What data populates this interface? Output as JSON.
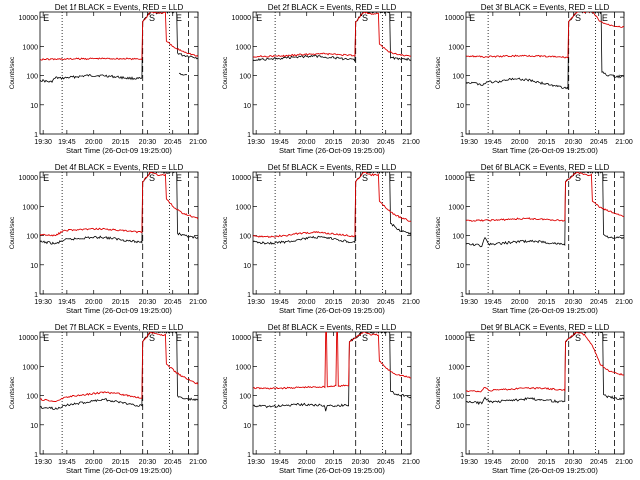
{
  "chart_data": [
    {
      "type": "line",
      "title": "Det 1f BLACK = Events, RED = LLD",
      "xlabel": "Start Time (26-Oct-09 19:25:00)",
      "ylabel": "Counts/sec",
      "panel_letters": [
        "E",
        "S",
        "E"
      ],
      "black": [
        [
          0,
          70
        ],
        [
          0.05,
          62
        ],
        [
          0.07,
          60
        ],
        [
          0.1,
          85
        ],
        [
          0.13,
          80
        ],
        [
          0.2,
          88
        ],
        [
          0.3,
          100
        ],
        [
          0.4,
          100
        ],
        [
          0.5,
          88
        ],
        [
          0.55,
          82
        ],
        [
          0.64,
          78
        ],
        [
          0.65,
          7000
        ],
        [
          0.7,
          15000
        ],
        [
          0.75,
          14000
        ],
        [
          0.82,
          15000
        ],
        [
          0.86,
          15000
        ],
        [
          0.87,
          600
        ],
        [
          0.9,
          500
        ],
        [
          0.96,
          450
        ],
        [
          1,
          400
        ]
      ],
      "black_tail": [
        [
          0.88,
          120
        ],
        [
          0.9,
          110
        ],
        [
          0.93,
          100
        ]
      ],
      "red": [
        [
          0,
          360
        ],
        [
          0.1,
          365
        ],
        [
          0.2,
          370
        ],
        [
          0.3,
          380
        ],
        [
          0.4,
          385
        ],
        [
          0.5,
          380
        ],
        [
          0.6,
          370
        ],
        [
          0.64,
          370
        ],
        [
          0.65,
          7000
        ],
        [
          0.7,
          15000
        ],
        [
          0.75,
          14000
        ],
        [
          0.8,
          1500
        ],
        [
          0.85,
          900
        ],
        [
          0.9,
          700
        ],
        [
          1,
          450
        ]
      ]
    },
    {
      "type": "line",
      "title": "Det 2f BLACK = Events, RED = LLD",
      "xlabel": "Start Time (26-Oct-09 19:25:00)",
      "ylabel": "Counts/sec",
      "panel_letters": [
        "E",
        "S",
        "E"
      ],
      "black": [
        [
          0,
          350
        ],
        [
          0.1,
          370
        ],
        [
          0.2,
          400
        ],
        [
          0.3,
          450
        ],
        [
          0.4,
          460
        ],
        [
          0.5,
          420
        ],
        [
          0.55,
          380
        ],
        [
          0.6,
          350
        ],
        [
          0.64,
          340
        ],
        [
          0.65,
          7000
        ],
        [
          0.7,
          15000
        ],
        [
          0.8,
          15000
        ],
        [
          0.86,
          15000
        ],
        [
          0.87,
          400
        ],
        [
          0.95,
          380
        ],
        [
          1,
          350
        ]
      ],
      "black_tail": [],
      "red": [
        [
          0,
          450
        ],
        [
          0.1,
          460
        ],
        [
          0.2,
          470
        ],
        [
          0.3,
          520
        ],
        [
          0.4,
          560
        ],
        [
          0.5,
          540
        ],
        [
          0.6,
          500
        ],
        [
          0.64,
          480
        ],
        [
          0.65,
          7000
        ],
        [
          0.7,
          15000
        ],
        [
          0.75,
          13000
        ],
        [
          0.8,
          1200
        ],
        [
          0.85,
          700
        ],
        [
          0.9,
          550
        ],
        [
          1,
          450
        ]
      ]
    },
    {
      "type": "line",
      "title": "Det 3f BLACK = Events, RED = LLD",
      "xlabel": "Start Time (26-Oct-09 19:25:00)",
      "ylabel": "Counts/sec",
      "panel_letters": [
        "E",
        "S",
        "E"
      ],
      "black": [
        [
          0,
          60
        ],
        [
          0.05,
          55
        ],
        [
          0.1,
          50
        ],
        [
          0.15,
          60
        ],
        [
          0.2,
          60
        ],
        [
          0.3,
          80
        ],
        [
          0.4,
          70
        ],
        [
          0.5,
          52
        ],
        [
          0.6,
          40
        ],
        [
          0.64,
          38
        ],
        [
          0.65,
          7000
        ],
        [
          0.7,
          15000
        ],
        [
          0.8,
          15000
        ],
        [
          0.85,
          15000
        ],
        [
          0.86,
          130
        ],
        [
          0.9,
          100
        ],
        [
          1,
          90
        ]
      ],
      "black_tail": [],
      "red": [
        [
          0,
          480
        ],
        [
          0.1,
          440
        ],
        [
          0.2,
          450
        ],
        [
          0.3,
          470
        ],
        [
          0.4,
          480
        ],
        [
          0.5,
          450
        ],
        [
          0.6,
          430
        ],
        [
          0.64,
          420
        ],
        [
          0.65,
          7000
        ],
        [
          0.7,
          15000
        ],
        [
          0.8,
          15000
        ],
        [
          0.85,
          7000
        ],
        [
          0.9,
          5500
        ],
        [
          1,
          4500
        ]
      ]
    },
    {
      "type": "line",
      "title": "Det 4f BLACK = Events, RED = LLD",
      "xlabel": "Start Time (26-Oct-09 19:25:00)",
      "ylabel": "Counts/sec",
      "panel_letters": [
        "E",
        "S",
        "E"
      ],
      "black": [
        [
          0,
          60
        ],
        [
          0.05,
          58
        ],
        [
          0.1,
          52
        ],
        [
          0.15,
          70
        ],
        [
          0.2,
          75
        ],
        [
          0.3,
          85
        ],
        [
          0.4,
          88
        ],
        [
          0.5,
          75
        ],
        [
          0.6,
          62
        ],
        [
          0.64,
          60
        ],
        [
          0.65,
          7000
        ],
        [
          0.7,
          15000
        ],
        [
          0.8,
          15000
        ],
        [
          0.86,
          15000
        ],
        [
          0.87,
          120
        ],
        [
          0.9,
          100
        ],
        [
          1,
          80
        ]
      ],
      "black_tail": [],
      "red": [
        [
          0,
          110
        ],
        [
          0.05,
          105
        ],
        [
          0.1,
          100
        ],
        [
          0.15,
          150
        ],
        [
          0.2,
          155
        ],
        [
          0.3,
          165
        ],
        [
          0.4,
          170
        ],
        [
          0.5,
          150
        ],
        [
          0.6,
          135
        ],
        [
          0.64,
          130
        ],
        [
          0.65,
          7000
        ],
        [
          0.7,
          15000
        ],
        [
          0.75,
          12000
        ],
        [
          0.8,
          1800
        ],
        [
          0.85,
          900
        ],
        [
          0.9,
          600
        ],
        [
          1,
          380
        ]
      ]
    },
    {
      "type": "line",
      "title": "Det 5f BLACK = Events, RED = LLD",
      "xlabel": "Start Time (26-Oct-09 19:25:00)",
      "ylabel": "Counts/sec",
      "panel_letters": [
        "E",
        "S",
        "E"
      ],
      "black": [
        [
          0,
          60
        ],
        [
          0.1,
          55
        ],
        [
          0.2,
          60
        ],
        [
          0.3,
          75
        ],
        [
          0.4,
          88
        ],
        [
          0.5,
          78
        ],
        [
          0.6,
          62
        ],
        [
          0.64,
          60
        ],
        [
          0.65,
          7000
        ],
        [
          0.7,
          15000
        ],
        [
          0.8,
          15000
        ],
        [
          0.86,
          15000
        ],
        [
          0.87,
          260
        ],
        [
          0.93,
          150
        ],
        [
          1,
          110
        ]
      ],
      "black_tail": [],
      "red": [
        [
          0,
          95
        ],
        [
          0.1,
          90
        ],
        [
          0.2,
          100
        ],
        [
          0.3,
          120
        ],
        [
          0.4,
          130
        ],
        [
          0.5,
          115
        ],
        [
          0.6,
          100
        ],
        [
          0.64,
          95
        ],
        [
          0.65,
          7000
        ],
        [
          0.7,
          15000
        ],
        [
          0.75,
          12000
        ],
        [
          0.8,
          1500
        ],
        [
          0.85,
          800
        ],
        [
          0.9,
          500
        ],
        [
          1,
          300
        ]
      ]
    },
    {
      "type": "line",
      "title": "Det 6f BLACK = Events, RED = LLD",
      "xlabel": "Start Time (26-Oct-09 19:25:00)",
      "ylabel": "Counts/sec",
      "panel_letters": [
        "E",
        "S",
        "E"
      ],
      "black": [
        [
          0,
          50
        ],
        [
          0.05,
          48
        ],
        [
          0.1,
          45
        ],
        [
          0.12,
          80
        ],
        [
          0.15,
          50
        ],
        [
          0.2,
          52
        ],
        [
          0.3,
          60
        ],
        [
          0.4,
          65
        ],
        [
          0.5,
          60
        ],
        [
          0.55,
          55
        ],
        [
          0.62,
          50
        ],
        [
          0.63,
          7000
        ],
        [
          0.7,
          15000
        ],
        [
          0.8,
          15000
        ],
        [
          0.86,
          15000
        ],
        [
          0.87,
          110
        ],
        [
          0.9,
          90
        ],
        [
          1,
          80
        ]
      ],
      "black_tail": [],
      "red": [
        [
          0,
          320
        ],
        [
          0.1,
          330
        ],
        [
          0.2,
          340
        ],
        [
          0.3,
          370
        ],
        [
          0.4,
          380
        ],
        [
          0.5,
          360
        ],
        [
          0.6,
          330
        ],
        [
          0.62,
          320
        ],
        [
          0.63,
          7000
        ],
        [
          0.7,
          15000
        ],
        [
          0.75,
          12000
        ],
        [
          0.8,
          1500
        ],
        [
          0.85,
          900
        ],
        [
          0.9,
          700
        ],
        [
          1,
          450
        ]
      ]
    },
    {
      "type": "line",
      "title": "Det 7f BLACK = Events, RED = LLD",
      "xlabel": "Start Time (26-Oct-09 19:25:00)",
      "ylabel": "Counts/sec",
      "panel_letters": [
        "E",
        "S",
        "E"
      ],
      "black": [
        [
          0,
          40
        ],
        [
          0.05,
          38
        ],
        [
          0.1,
          35
        ],
        [
          0.15,
          45
        ],
        [
          0.2,
          50
        ],
        [
          0.3,
          60
        ],
        [
          0.4,
          75
        ],
        [
          0.5,
          60
        ],
        [
          0.6,
          48
        ],
        [
          0.64,
          45
        ],
        [
          0.65,
          7000
        ],
        [
          0.7,
          15000
        ],
        [
          0.8,
          15000
        ],
        [
          0.86,
          15000
        ],
        [
          0.87,
          100
        ],
        [
          0.9,
          80
        ],
        [
          1,
          70
        ]
      ],
      "black_tail": [],
      "red": [
        [
          0,
          75
        ],
        [
          0.05,
          68
        ],
        [
          0.1,
          62
        ],
        [
          0.15,
          85
        ],
        [
          0.2,
          95
        ],
        [
          0.3,
          110
        ],
        [
          0.4,
          130
        ],
        [
          0.5,
          115
        ],
        [
          0.6,
          90
        ],
        [
          0.64,
          80
        ],
        [
          0.65,
          7000
        ],
        [
          0.7,
          15000
        ],
        [
          0.75,
          12000
        ],
        [
          0.8,
          1200
        ],
        [
          0.85,
          700
        ],
        [
          0.9,
          450
        ],
        [
          1,
          250
        ]
      ]
    },
    {
      "type": "line",
      "title": "Det 8f BLACK = Events, RED = LLD",
      "xlabel": "Start Time (26-Oct-09 19:25:00)",
      "ylabel": "Counts/sec",
      "panel_letters": [
        "E",
        "S",
        "E"
      ],
      "black": [
        [
          0,
          45
        ],
        [
          0.1,
          42
        ],
        [
          0.2,
          45
        ],
        [
          0.3,
          50
        ],
        [
          0.4,
          48
        ],
        [
          0.45,
          45
        ],
        [
          0.46,
          30
        ],
        [
          0.47,
          45
        ],
        [
          0.55,
          45
        ],
        [
          0.58,
          48
        ],
        [
          0.6,
          45
        ],
        [
          0.61,
          7000
        ],
        [
          0.7,
          15000
        ],
        [
          0.8,
          15000
        ],
        [
          0.86,
          15000
        ],
        [
          0.87,
          140
        ],
        [
          0.9,
          110
        ],
        [
          1,
          90
        ]
      ],
      "black_tail": [],
      "red": [
        [
          0,
          180
        ],
        [
          0.1,
          175
        ],
        [
          0.2,
          180
        ],
        [
          0.3,
          190
        ],
        [
          0.4,
          195
        ],
        [
          0.45,
          200
        ],
        [
          0.46,
          15000
        ],
        [
          0.47,
          200
        ],
        [
          0.5,
          210
        ],
        [
          0.52,
          220
        ],
        [
          0.53,
          15000
        ],
        [
          0.54,
          210
        ],
        [
          0.6,
          220
        ],
        [
          0.61,
          7000
        ],
        [
          0.7,
          15000
        ],
        [
          0.75,
          12000
        ],
        [
          0.8,
          1500
        ],
        [
          0.85,
          800
        ],
        [
          0.9,
          550
        ],
        [
          1,
          400
        ]
      ]
    },
    {
      "type": "line",
      "title": "Det 9f BLACK = Events, RED = LLD",
      "xlabel": "Start Time (26-Oct-09 19:25:00)",
      "ylabel": "Counts/sec",
      "panel_letters": [
        "E",
        "S",
        "E"
      ],
      "black": [
        [
          0,
          60
        ],
        [
          0.05,
          58
        ],
        [
          0.1,
          55
        ],
        [
          0.12,
          90
        ],
        [
          0.15,
          60
        ],
        [
          0.2,
          62
        ],
        [
          0.3,
          70
        ],
        [
          0.4,
          78
        ],
        [
          0.5,
          72
        ],
        [
          0.55,
          65
        ],
        [
          0.62,
          60
        ],
        [
          0.63,
          7000
        ],
        [
          0.7,
          15000
        ],
        [
          0.8,
          15000
        ],
        [
          0.86,
          15000
        ],
        [
          0.87,
          110
        ],
        [
          0.9,
          90
        ],
        [
          1,
          75
        ]
      ],
      "black_tail": [],
      "red": [
        [
          0,
          140
        ],
        [
          0.1,
          140
        ],
        [
          0.12,
          200
        ],
        [
          0.15,
          150
        ],
        [
          0.2,
          155
        ],
        [
          0.3,
          170
        ],
        [
          0.4,
          180
        ],
        [
          0.5,
          175
        ],
        [
          0.6,
          160
        ],
        [
          0.62,
          155
        ],
        [
          0.63,
          7000
        ],
        [
          0.7,
          15000
        ],
        [
          0.75,
          12000
        ],
        [
          0.8,
          5000
        ],
        [
          0.85,
          1200
        ],
        [
          0.9,
          700
        ],
        [
          1,
          500
        ]
      ]
    }
  ],
  "axis": {
    "x_ticks": [
      "19:30",
      "19:45",
      "20:00",
      "20:15",
      "20:30",
      "20:45",
      "21:00"
    ],
    "x_tick_pos": [
      0.02,
      0.17,
      0.34,
      0.51,
      0.68,
      0.84,
      1.0
    ],
    "y_ticks": [
      "1",
      "10",
      "100",
      "1000",
      "10000"
    ],
    "y_tick_vals": [
      1,
      10,
      100,
      1000,
      10000
    ],
    "ylim": [
      1,
      15000
    ],
    "vlines": [
      {
        "pos": 0.14,
        "style": "dotted"
      },
      {
        "pos": 0.65,
        "style": "dashed"
      },
      {
        "pos": 0.82,
        "style": "dotted"
      },
      {
        "pos": 0.94,
        "style": "dashed"
      }
    ]
  },
  "colors": {
    "events": "#000000",
    "lld": "#dd0000"
  }
}
